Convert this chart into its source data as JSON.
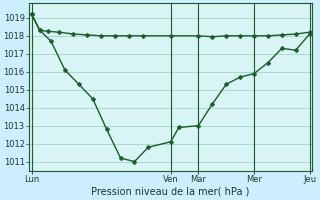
{
  "xlabel": "Pression niveau de la mer( hPa )",
  "background_color": "#cceeff",
  "plot_bg_color": "#d8f4f4",
  "grid_color": "#99ccbb",
  "line_color": "#1a5c2a",
  "ylim": [
    1010.5,
    1019.8
  ],
  "yticks": [
    1011,
    1012,
    1013,
    1014,
    1015,
    1016,
    1017,
    1018,
    1019
  ],
  "day_positions": [
    0.0,
    0.5,
    0.6,
    0.8,
    1.0
  ],
  "day_labels": [
    "Lun",
    "Ven",
    "Mar",
    "Mer",
    "Jeu"
  ],
  "line1_x": [
    0.0,
    0.03,
    0.06,
    0.1,
    0.15,
    0.2,
    0.25,
    0.3,
    0.35,
    0.4,
    0.5,
    0.6,
    0.65,
    0.7,
    0.75,
    0.8,
    0.85,
    0.9,
    0.95,
    1.0
  ],
  "line1_y": [
    1019.2,
    1018.3,
    1018.25,
    1018.2,
    1018.1,
    1018.05,
    1018.0,
    1018.0,
    1018.0,
    1018.0,
    1018.0,
    1018.0,
    1017.95,
    1018.0,
    1018.0,
    1018.0,
    1018.0,
    1018.05,
    1018.1,
    1018.2
  ],
  "line2_x": [
    0.0,
    0.03,
    0.07,
    0.12,
    0.17,
    0.22,
    0.27,
    0.32,
    0.37,
    0.42,
    0.5,
    0.53,
    0.6,
    0.65,
    0.7,
    0.75,
    0.8,
    0.85,
    0.9,
    0.95,
    1.0
  ],
  "line2_y": [
    1019.2,
    1018.3,
    1017.7,
    1016.1,
    1015.3,
    1014.5,
    1012.8,
    1011.2,
    1011.0,
    1011.8,
    1012.1,
    1012.9,
    1013.0,
    1014.2,
    1015.3,
    1015.7,
    1015.9,
    1016.5,
    1017.3,
    1017.2,
    1018.1
  ],
  "vline_positions": [
    0.0,
    0.5,
    0.6,
    0.8,
    1.0
  ],
  "marker_size": 2.5,
  "linewidth": 1.0,
  "xlabel_fontsize": 7,
  "tick_labelsize": 6
}
